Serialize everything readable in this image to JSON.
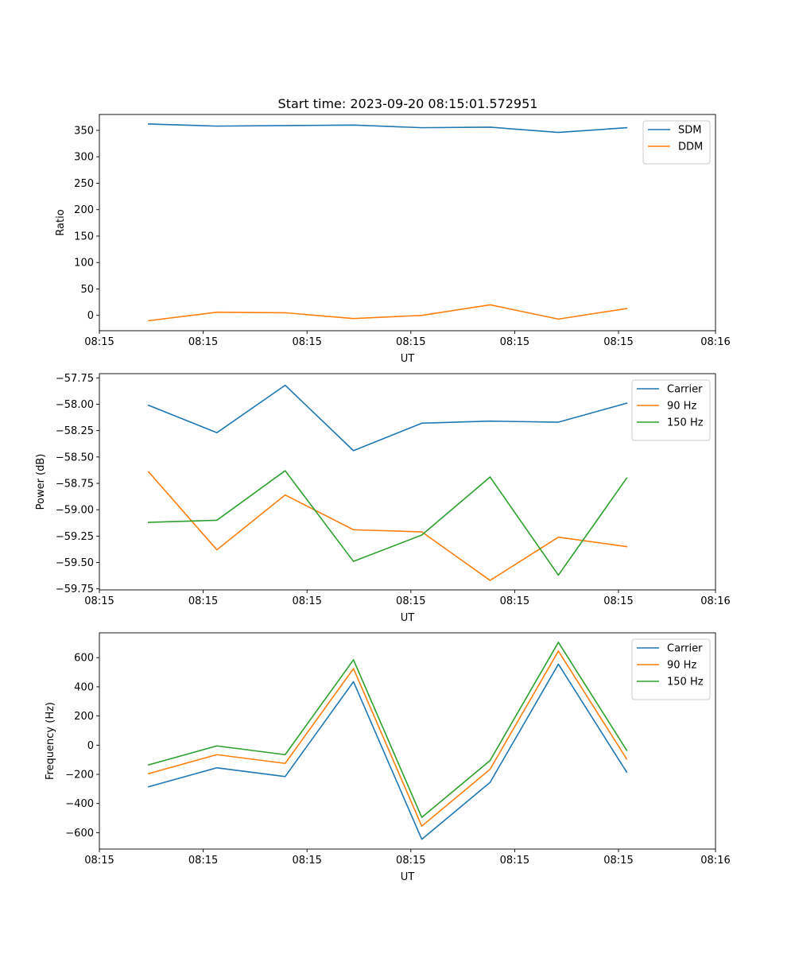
{
  "figure_title": "Start time: 2023-09-20 08:15:01.572951",
  "chart_data": [
    {
      "type": "line",
      "title": "Start time: 2023-09-20 08:15:01.572951",
      "xlabel": "UT",
      "ylabel": "Ratio",
      "x": [
        1,
        2,
        3,
        4,
        5,
        6,
        7,
        8
      ],
      "xlim": [
        0.28,
        9.3
      ],
      "x_ticks": [
        0.28,
        1.8,
        3.32,
        4.84,
        6.36,
        7.88,
        9.3
      ],
      "x_tick_labels": [
        "08:15",
        "08:15",
        "08:15",
        "08:15",
        "08:15",
        "08:15",
        "08:16"
      ],
      "ylim": [
        -29,
        380
      ],
      "y_ticks": [
        0,
        50,
        100,
        150,
        200,
        250,
        300,
        350
      ],
      "y_tick_labels": [
        "0",
        "50",
        "100",
        "150",
        "200",
        "250",
        "300",
        "350"
      ],
      "legend_position": "top-right",
      "series": [
        {
          "name": "SDM",
          "color": "#1f77b4",
          "values": [
            362,
            358,
            359,
            360,
            355,
            356,
            346,
            355
          ]
        },
        {
          "name": "DDM",
          "color": "#ff7f0e",
          "values": [
            -10,
            6,
            5,
            -6,
            0,
            20,
            -7,
            13
          ]
        }
      ]
    },
    {
      "type": "line",
      "xlabel": "UT",
      "ylabel": "Power (dB)",
      "x": [
        1,
        2,
        3,
        4,
        5,
        6,
        7,
        8
      ],
      "xlim": [
        0.28,
        9.3
      ],
      "x_ticks": [
        0.28,
        1.8,
        3.32,
        4.84,
        6.36,
        7.88,
        9.3
      ],
      "x_tick_labels": [
        "08:15",
        "08:15",
        "08:15",
        "08:15",
        "08:15",
        "08:15",
        "08:16"
      ],
      "ylim": [
        -59.76,
        -57.71
      ],
      "y_ticks": [
        -59.75,
        -59.5,
        -59.25,
        -59.0,
        -58.75,
        -58.5,
        -58.25,
        -58.0,
        -57.75
      ],
      "y_tick_labels": [
        "−59.75",
        "−59.50",
        "−59.25",
        "−59.00",
        "−58.75",
        "−58.50",
        "−58.25",
        "−58.00",
        "−57.75"
      ],
      "legend_position": "top-right",
      "series": [
        {
          "name": "Carrier",
          "color": "#1f77b4",
          "values": [
            -58.01,
            -58.27,
            -57.82,
            -58.44,
            -58.18,
            -58.16,
            -58.17,
            -57.99
          ]
        },
        {
          "name": "90 Hz",
          "color": "#ff7f0e",
          "values": [
            -58.64,
            -59.38,
            -58.86,
            -59.19,
            -59.21,
            -59.67,
            -59.26,
            -59.35
          ]
        },
        {
          "name": "150 Hz",
          "color": "#2ca02c",
          "values": [
            -59.12,
            -59.1,
            -58.63,
            -59.49,
            -59.24,
            -58.69,
            -59.62,
            -58.7
          ]
        }
      ]
    },
    {
      "type": "line",
      "xlabel": "UT",
      "ylabel": "Frequency (Hz)",
      "x": [
        1,
        2,
        3,
        4,
        5,
        6,
        7,
        8
      ],
      "xlim": [
        0.28,
        9.3
      ],
      "x_ticks": [
        0.28,
        1.8,
        3.32,
        4.84,
        6.36,
        7.88,
        9.3
      ],
      "x_tick_labels": [
        "08:15",
        "08:15",
        "08:15",
        "08:15",
        "08:15",
        "08:15",
        "08:16"
      ],
      "ylim": [
        -712,
        770
      ],
      "y_ticks": [
        -600,
        -400,
        -200,
        0,
        200,
        400,
        600
      ],
      "y_tick_labels": [
        "−600",
        "−400",
        "−200",
        "0",
        "200",
        "400",
        "600"
      ],
      "legend_position": "top-right",
      "series": [
        {
          "name": "Carrier",
          "color": "#1f77b4",
          "values": [
            -285,
            -155,
            -215,
            435,
            -645,
            -255,
            555,
            -185
          ]
        },
        {
          "name": "90 Hz",
          "color": "#ff7f0e",
          "values": [
            -195,
            -65,
            -125,
            525,
            -555,
            -165,
            645,
            -95
          ]
        },
        {
          "name": "150 Hz",
          "color": "#2ca02c",
          "values": [
            -135,
            -5,
            -65,
            585,
            -495,
            -105,
            705,
            -35
          ]
        }
      ]
    }
  ]
}
